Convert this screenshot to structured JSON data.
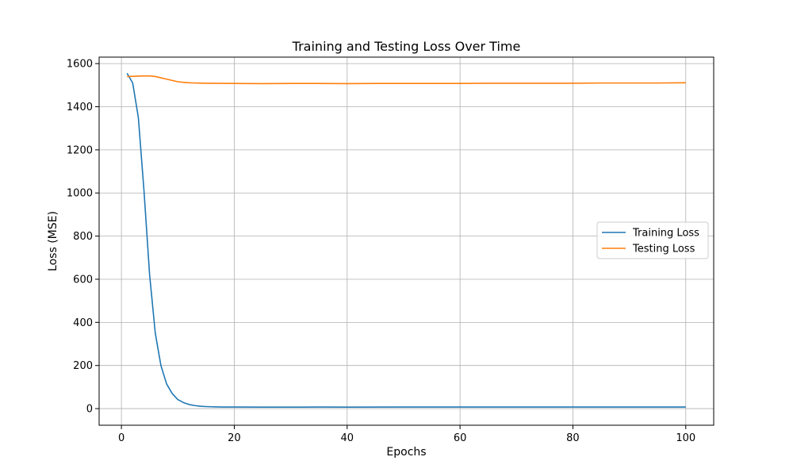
{
  "chart_data": {
    "type": "line",
    "title": "Training and Testing Loss Over Time",
    "xlabel": "Epochs",
    "ylabel": "Loss (MSE)",
    "xlim": [
      -3.95,
      104.95
    ],
    "ylim": [
      -77,
      1630
    ],
    "xticks": [
      0,
      20,
      40,
      60,
      80,
      100
    ],
    "yticks": [
      0,
      200,
      400,
      600,
      800,
      1000,
      1200,
      1400,
      1600
    ],
    "grid": true,
    "legend_position": "center-right",
    "series": [
      {
        "name": "Training Loss",
        "color": "#1f77b4",
        "points": [
          [
            1,
            1555
          ],
          [
            2,
            1510
          ],
          [
            3,
            1350
          ],
          [
            4,
            1010
          ],
          [
            5,
            620
          ],
          [
            6,
            350
          ],
          [
            7,
            200
          ],
          [
            8,
            115
          ],
          [
            9,
            70
          ],
          [
            10,
            42
          ],
          [
            11,
            28
          ],
          [
            12,
            19
          ],
          [
            13,
            14
          ],
          [
            14,
            11
          ],
          [
            15,
            9.5
          ],
          [
            16,
            8.5
          ],
          [
            17,
            8
          ],
          [
            18,
            7.5
          ],
          [
            20,
            7.2
          ],
          [
            25,
            7
          ],
          [
            30,
            7
          ],
          [
            35,
            7.2
          ],
          [
            40,
            7
          ],
          [
            50,
            7.3
          ],
          [
            60,
            7.2
          ],
          [
            70,
            7.4
          ],
          [
            80,
            7.3
          ],
          [
            90,
            7.2
          ],
          [
            100,
            7.5
          ]
        ]
      },
      {
        "name": "Testing Loss",
        "color": "#ff7f0e",
        "points": [
          [
            1,
            1540
          ],
          [
            2,
            1541
          ],
          [
            3,
            1542
          ],
          [
            4,
            1543
          ],
          [
            5,
            1543
          ],
          [
            6,
            1540
          ],
          [
            7,
            1534
          ],
          [
            8,
            1528
          ],
          [
            9,
            1522
          ],
          [
            10,
            1516
          ],
          [
            11,
            1513
          ],
          [
            12,
            1511
          ],
          [
            13,
            1510
          ],
          [
            15,
            1509
          ],
          [
            20,
            1508
          ],
          [
            25,
            1507
          ],
          [
            30,
            1508
          ],
          [
            35,
            1508
          ],
          [
            40,
            1507
          ],
          [
            45,
            1508
          ],
          [
            50,
            1508
          ],
          [
            55,
            1508
          ],
          [
            60,
            1508
          ],
          [
            65,
            1509
          ],
          [
            70,
            1509
          ],
          [
            75,
            1509
          ],
          [
            80,
            1509
          ],
          [
            85,
            1510
          ],
          [
            90,
            1510
          ],
          [
            95,
            1510
          ],
          [
            100,
            1511
          ]
        ]
      }
    ]
  }
}
